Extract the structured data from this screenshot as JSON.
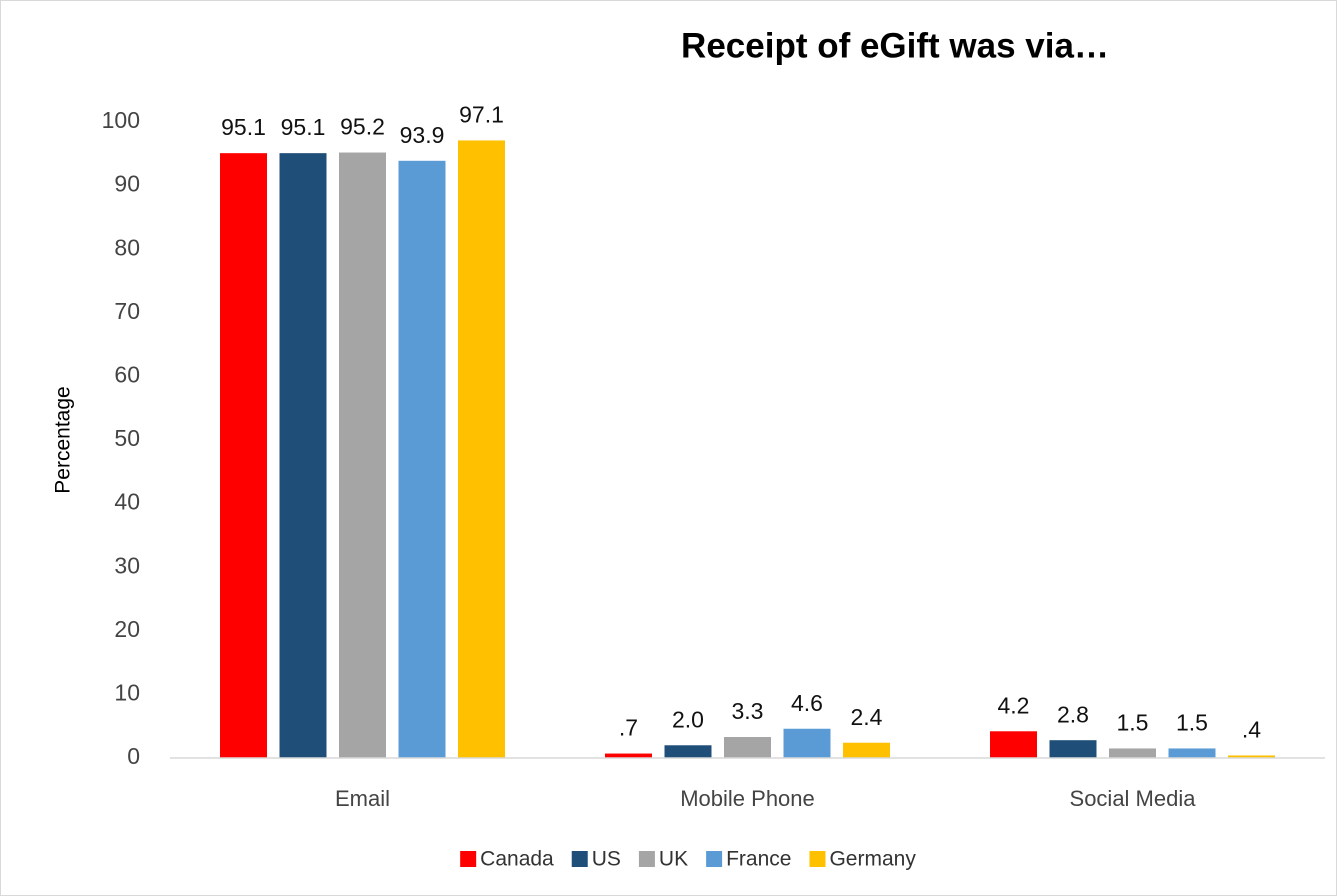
{
  "chart_data": {
    "type": "bar",
    "title": "Receipt of eGift was via…",
    "y_label": "Percentage",
    "categories": [
      "Email",
      "Mobile Phone",
      "Social Media"
    ],
    "series": [
      {
        "name": "Canada",
        "color": "#ff0000",
        "values": [
          95.1,
          0.7,
          4.2
        ],
        "value_labels": [
          "95.1",
          ".7",
          "4.2"
        ]
      },
      {
        "name": "US",
        "color": "#1f4e79",
        "values": [
          95.1,
          2.0,
          2.8
        ],
        "value_labels": [
          "95.1",
          "2.0",
          "2.8"
        ]
      },
      {
        "name": "UK",
        "color": "#a5a5a5",
        "values": [
          95.2,
          3.3,
          1.5
        ],
        "value_labels": [
          "95.2",
          "3.3",
          "1.5"
        ]
      },
      {
        "name": "France",
        "color": "#5b9bd5",
        "values": [
          93.9,
          4.6,
          1.5
        ],
        "value_labels": [
          "93.9",
          "4.6",
          "1.5"
        ]
      },
      {
        "name": "Germany",
        "color": "#ffc000",
        "values": [
          97.1,
          2.4,
          0.4
        ],
        "value_labels": [
          "97.1",
          "2.4",
          ".4"
        ]
      }
    ],
    "ylim": [
      0,
      100
    ],
    "yticks": [
      0,
      10,
      20,
      30,
      40,
      50,
      60,
      70,
      80,
      90,
      100
    ],
    "grid": false,
    "legend": "bottom"
  }
}
